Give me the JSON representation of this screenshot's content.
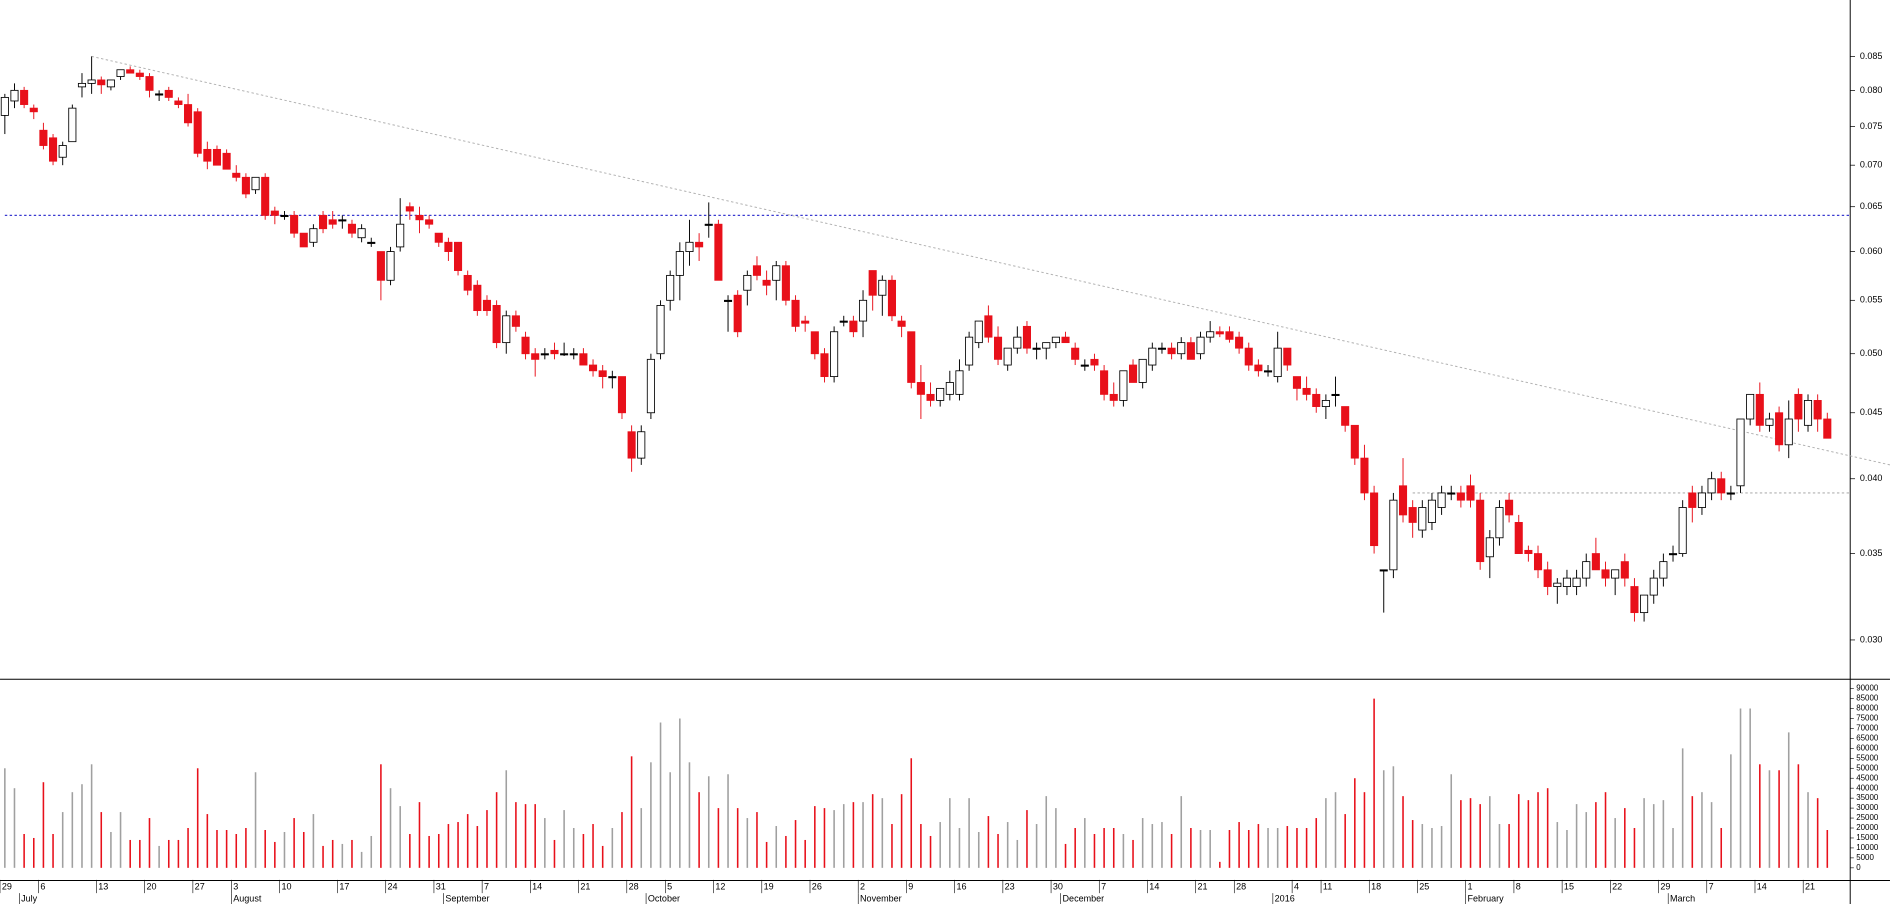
{
  "chart_data": {
    "type": "candlestick",
    "log_scale": true,
    "categories": [
      "29",
      null,
      null,
      null,
      "6",
      null,
      null,
      null,
      null,
      null,
      "13",
      null,
      null,
      null,
      null,
      "20",
      null,
      null,
      null,
      null,
      "27",
      null,
      null,
      null,
      "3",
      null,
      null,
      null,
      null,
      "10",
      null,
      null,
      null,
      null,
      null,
      "17",
      null,
      null,
      null,
      null,
      "24",
      null,
      null,
      null,
      null,
      "31",
      null,
      null,
      null,
      null,
      "7",
      null,
      null,
      null,
      null,
      "14",
      null,
      null,
      null,
      null,
      "21",
      null,
      null,
      null,
      null,
      "28",
      null,
      null,
      null,
      "5",
      null,
      null,
      null,
      null,
      "12",
      null,
      null,
      null,
      null,
      "19",
      null,
      null,
      null,
      null,
      "26",
      null,
      null,
      null,
      null,
      "2",
      null,
      null,
      null,
      null,
      "9",
      null,
      null,
      null,
      null,
      "16",
      null,
      null,
      null,
      null,
      "23",
      null,
      null,
      null,
      null,
      "30",
      null,
      null,
      null,
      null,
      "7",
      null,
      null,
      null,
      null,
      "14",
      null,
      null,
      null,
      null,
      "21",
      null,
      null,
      null,
      "28",
      null,
      null,
      null,
      null,
      null,
      "4",
      null,
      null,
      "11",
      null,
      null,
      null,
      null,
      "18",
      null,
      null,
      null,
      null,
      "25",
      null,
      null,
      null,
      null,
      "1",
      null,
      null,
      null,
      null,
      "8",
      null,
      null,
      null,
      null,
      "15",
      null,
      null,
      null,
      null,
      "22",
      null,
      null,
      null,
      null,
      "29",
      null,
      null,
      null,
      null,
      "7",
      null,
      null,
      null,
      null,
      "14",
      null,
      null,
      null,
      null,
      "21",
      null,
      null
    ],
    "month_labels": [
      null,
      null,
      "July",
      null,
      null,
      null,
      null,
      null,
      null,
      null,
      null,
      null,
      null,
      null,
      null,
      null,
      null,
      null,
      null,
      null,
      null,
      null,
      null,
      null,
      "August",
      null,
      null,
      null,
      null,
      null,
      null,
      null,
      null,
      null,
      null,
      null,
      null,
      null,
      null,
      null,
      null,
      null,
      null,
      null,
      null,
      null,
      "September",
      null,
      null,
      null,
      null,
      null,
      null,
      null,
      null,
      null,
      null,
      null,
      null,
      null,
      null,
      null,
      null,
      null,
      null,
      null,
      null,
      "October",
      null,
      null,
      null,
      null,
      null,
      null,
      null,
      null,
      null,
      null,
      null,
      null,
      null,
      null,
      null,
      null,
      null,
      null,
      null,
      null,
      null,
      "November",
      null,
      null,
      null,
      null,
      null,
      null,
      null,
      null,
      null,
      null,
      null,
      null,
      null,
      null,
      null,
      null,
      null,
      null,
      null,
      null,
      "December",
      null,
      null,
      null,
      null,
      null,
      null,
      null,
      null,
      null,
      null,
      null,
      null,
      null,
      null,
      null,
      null,
      null,
      null,
      null,
      null,
      null,
      "2016",
      null,
      null,
      null,
      null,
      null,
      null,
      null,
      null,
      null,
      null,
      null,
      null,
      null,
      null,
      null,
      null,
      null,
      null,
      null,
      "February",
      null,
      null,
      null,
      null,
      null,
      null,
      null,
      null,
      null,
      null,
      null,
      null,
      null,
      null,
      null,
      null,
      null,
      null,
      null,
      null,
      "March",
      null,
      null,
      null,
      null,
      null,
      null,
      null,
      null,
      null,
      null,
      null,
      null,
      null,
      null,
      null,
      null
    ],
    "open": [
      0.0765,
      0.0785,
      0.08,
      0.0775,
      0.0745,
      0.0735,
      0.071,
      0.073,
      0.0805,
      0.081,
      0.0815,
      0.0805,
      0.082,
      0.083,
      0.0825,
      0.082,
      0.0795,
      0.08,
      0.0785,
      0.078,
      0.077,
      0.072,
      0.072,
      0.0715,
      0.069,
      0.0685,
      0.067,
      0.0685,
      0.0645,
      0.064,
      0.064,
      0.062,
      0.061,
      0.064,
      0.0635,
      0.0635,
      0.063,
      0.0615,
      0.061,
      0.06,
      0.057,
      0.0605,
      0.065,
      0.064,
      0.0635,
      0.062,
      0.061,
      0.061,
      0.0575,
      0.0565,
      0.055,
      0.0545,
      0.051,
      0.0535,
      0.0515,
      0.05,
      0.05,
      0.0503,
      0.05,
      0.05,
      0.05,
      0.049,
      0.0485,
      0.048,
      0.048,
      0.0435,
      0.0415,
      0.045,
      0.05,
      0.055,
      0.0575,
      0.06,
      0.061,
      0.063,
      0.063,
      0.055,
      0.0555,
      0.056,
      0.0585,
      0.057,
      0.057,
      0.0585,
      0.055,
      0.053,
      0.052,
      0.05,
      0.048,
      0.053,
      0.053,
      0.053,
      0.058,
      0.0555,
      0.057,
      0.053,
      0.052,
      0.0475,
      0.0465,
      0.046,
      0.0465,
      0.0465,
      0.049,
      0.051,
      0.0535,
      0.0515,
      0.049,
      0.0505,
      0.0525,
      0.0505,
      0.0505,
      0.051,
      0.0515,
      0.0505,
      0.049,
      0.0495,
      0.0485,
      0.0465,
      0.046,
      0.049,
      0.0475,
      0.049,
      0.0505,
      0.0505,
      0.05,
      0.051,
      0.05,
      0.0515,
      0.052,
      0.052,
      0.0515,
      0.0505,
      0.049,
      0.0485,
      0.048,
      0.0505,
      0.048,
      0.047,
      0.0465,
      0.0455,
      0.0465,
      0.0455,
      0.044,
      0.0415,
      0.039,
      0.034,
      0.034,
      0.0395,
      0.038,
      0.0365,
      0.037,
      0.038,
      0.039,
      0.039,
      0.0395,
      0.0385,
      0.0348,
      0.036,
      0.0385,
      0.037,
      0.0352,
      0.035,
      0.034,
      0.033,
      0.033,
      0.033,
      0.0335,
      0.035,
      0.034,
      0.0335,
      0.0345,
      0.033,
      0.0315,
      0.0325,
      0.0335,
      0.035,
      0.035,
      0.039,
      0.038,
      0.039,
      0.04,
      0.039,
      0.0395,
      0.0445,
      0.0465,
      0.044,
      0.045,
      0.0425,
      0.0465,
      0.044,
      0.046,
      0.0445
    ],
    "high": [
      0.0795,
      0.081,
      0.0805,
      0.078,
      0.0755,
      0.074,
      0.073,
      0.078,
      0.0825,
      0.085,
      0.082,
      0.0815,
      0.083,
      0.0835,
      0.083,
      0.0825,
      0.08,
      0.0805,
      0.079,
      0.0795,
      0.0775,
      0.073,
      0.0725,
      0.072,
      0.07,
      0.069,
      0.0685,
      0.069,
      0.065,
      0.0645,
      0.0645,
      0.062,
      0.063,
      0.0645,
      0.0645,
      0.064,
      0.0635,
      0.063,
      0.0615,
      0.06,
      0.0605,
      0.066,
      0.0655,
      0.065,
      0.064,
      0.062,
      0.0615,
      0.061,
      0.058,
      0.057,
      0.0555,
      0.055,
      0.054,
      0.054,
      0.052,
      0.0505,
      0.0505,
      0.051,
      0.051,
      0.0505,
      0.0505,
      0.0495,
      0.049,
      0.0485,
      0.048,
      0.044,
      0.044,
      0.05,
      0.055,
      0.058,
      0.061,
      0.0635,
      0.062,
      0.0655,
      0.0635,
      0.0555,
      0.056,
      0.058,
      0.0595,
      0.058,
      0.059,
      0.059,
      0.0555,
      0.0535,
      0.052,
      0.0505,
      0.0525,
      0.0535,
      0.0535,
      0.056,
      0.058,
      0.0575,
      0.0575,
      0.0535,
      0.052,
      0.049,
      0.0475,
      0.047,
      0.0485,
      0.0495,
      0.052,
      0.053,
      0.0545,
      0.0525,
      0.0505,
      0.0525,
      0.053,
      0.051,
      0.051,
      0.0515,
      0.052,
      0.051,
      0.0495,
      0.05,
      0.049,
      0.0475,
      0.0485,
      0.0495,
      0.0495,
      0.051,
      0.051,
      0.051,
      0.0515,
      0.0515,
      0.052,
      0.053,
      0.0525,
      0.0525,
      0.052,
      0.051,
      0.0495,
      0.049,
      0.052,
      0.0505,
      0.048,
      0.048,
      0.047,
      0.0465,
      0.048,
      0.0455,
      0.044,
      0.0425,
      0.0395,
      0.034,
      0.039,
      0.0415,
      0.0385,
      0.0385,
      0.039,
      0.0395,
      0.0395,
      0.0395,
      0.0403,
      0.039,
      0.0365,
      0.0385,
      0.039,
      0.0375,
      0.0355,
      0.0355,
      0.0345,
      0.0335,
      0.034,
      0.034,
      0.035,
      0.036,
      0.0345,
      0.034,
      0.035,
      0.0335,
      0.0325,
      0.034,
      0.035,
      0.0355,
      0.0385,
      0.0395,
      0.0395,
      0.0405,
      0.0405,
      0.0395,
      0.0445,
      0.0465,
      0.0475,
      0.045,
      0.0455,
      0.046,
      0.047,
      0.0465,
      0.0465,
      0.045
    ],
    "low": [
      0.074,
      0.0775,
      0.0775,
      0.076,
      0.072,
      0.07,
      0.07,
      0.073,
      0.079,
      0.0795,
      0.0795,
      0.08,
      0.0815,
      0.0825,
      0.0815,
      0.079,
      0.0785,
      0.0785,
      0.0775,
      0.075,
      0.071,
      0.0695,
      0.07,
      0.0695,
      0.068,
      0.066,
      0.0665,
      0.0635,
      0.063,
      0.0635,
      0.0615,
      0.0605,
      0.0605,
      0.062,
      0.0625,
      0.0625,
      0.0615,
      0.061,
      0.0605,
      0.055,
      0.0565,
      0.06,
      0.0635,
      0.062,
      0.0625,
      0.0605,
      0.059,
      0.0575,
      0.0555,
      0.0535,
      0.0535,
      0.0505,
      0.05,
      0.052,
      0.0495,
      0.048,
      0.0495,
      0.0495,
      0.0498,
      0.0495,
      0.049,
      0.048,
      0.047,
      0.047,
      0.0445,
      0.0405,
      0.041,
      0.0445,
      0.0495,
      0.054,
      0.055,
      0.0585,
      0.059,
      0.0615,
      0.057,
      0.052,
      0.0515,
      0.0545,
      0.057,
      0.0555,
      0.055,
      0.0545,
      0.052,
      0.052,
      0.0495,
      0.0475,
      0.0475,
      0.0525,
      0.0515,
      0.0515,
      0.054,
      0.0535,
      0.053,
      0.0515,
      0.047,
      0.0445,
      0.0455,
      0.0455,
      0.046,
      0.046,
      0.0485,
      0.0505,
      0.051,
      0.049,
      0.0485,
      0.05,
      0.05,
      0.0495,
      0.0495,
      0.0505,
      0.051,
      0.049,
      0.0485,
      0.0485,
      0.046,
      0.0455,
      0.0455,
      0.0475,
      0.047,
      0.0485,
      0.05,
      0.0495,
      0.0495,
      0.0495,
      0.0495,
      0.051,
      0.0515,
      0.051,
      0.05,
      0.0485,
      0.048,
      0.048,
      0.0475,
      0.0485,
      0.046,
      0.046,
      0.045,
      0.0445,
      0.0455,
      0.0435,
      0.041,
      0.0385,
      0.035,
      0.0315,
      0.0335,
      0.037,
      0.036,
      0.036,
      0.0365,
      0.0375,
      0.0385,
      0.038,
      0.038,
      0.034,
      0.0335,
      0.0355,
      0.037,
      0.035,
      0.0345,
      0.0335,
      0.0325,
      0.032,
      0.0325,
      0.0325,
      0.033,
      0.034,
      0.033,
      0.0325,
      0.033,
      0.031,
      0.031,
      0.032,
      0.033,
      0.0345,
      0.0348,
      0.037,
      0.0375,
      0.0385,
      0.0385,
      0.0385,
      0.039,
      0.044,
      0.0435,
      0.0435,
      0.042,
      0.0415,
      0.0435,
      0.0435,
      0.0435,
      0.043
    ],
    "close": [
      0.079,
      0.08,
      0.078,
      0.077,
      0.0725,
      0.0705,
      0.0725,
      0.0775,
      0.081,
      0.0815,
      0.0808,
      0.0815,
      0.083,
      0.0825,
      0.082,
      0.08,
      0.0795,
      0.079,
      0.078,
      0.0755,
      0.0715,
      0.0705,
      0.07,
      0.0695,
      0.0685,
      0.0665,
      0.0685,
      0.064,
      0.064,
      0.064,
      0.062,
      0.0605,
      0.0625,
      0.0625,
      0.063,
      0.0635,
      0.062,
      0.0625,
      0.061,
      0.057,
      0.06,
      0.063,
      0.0645,
      0.0635,
      0.063,
      0.061,
      0.06,
      0.058,
      0.056,
      0.054,
      0.054,
      0.051,
      0.0535,
      0.0525,
      0.05,
      0.0495,
      0.05,
      0.05,
      0.05,
      0.05,
      0.049,
      0.0485,
      0.048,
      0.048,
      0.045,
      0.0415,
      0.0435,
      0.0495,
      0.0545,
      0.0575,
      0.06,
      0.061,
      0.0605,
      0.063,
      0.057,
      0.055,
      0.052,
      0.0575,
      0.0575,
      0.0565,
      0.0585,
      0.055,
      0.0525,
      0.0528,
      0.05,
      0.048,
      0.052,
      0.053,
      0.052,
      0.055,
      0.0555,
      0.057,
      0.0535,
      0.0525,
      0.0475,
      0.0465,
      0.046,
      0.047,
      0.0475,
      0.0485,
      0.0515,
      0.053,
      0.0515,
      0.0495,
      0.0505,
      0.0515,
      0.0505,
      0.0505,
      0.051,
      0.0515,
      0.051,
      0.0495,
      0.049,
      0.049,
      0.0465,
      0.046,
      0.0485,
      0.0475,
      0.0495,
      0.0505,
      0.0505,
      0.05,
      0.051,
      0.0495,
      0.0515,
      0.052,
      0.0518,
      0.0513,
      0.0505,
      0.049,
      0.0485,
      0.0485,
      0.0505,
      0.049,
      0.047,
      0.0465,
      0.0455,
      0.046,
      0.0465,
      0.044,
      0.0415,
      0.039,
      0.0355,
      0.034,
      0.0385,
      0.0375,
      0.037,
      0.038,
      0.0385,
      0.039,
      0.039,
      0.0385,
      0.0385,
      0.0345,
      0.036,
      0.038,
      0.0375,
      0.035,
      0.035,
      0.034,
      0.033,
      0.0332,
      0.0335,
      0.0335,
      0.0345,
      0.034,
      0.0335,
      0.034,
      0.0335,
      0.0315,
      0.0325,
      0.0335,
      0.0345,
      0.035,
      0.038,
      0.038,
      0.039,
      0.04,
      0.039,
      0.039,
      0.0445,
      0.0465,
      0.044,
      0.0445,
      0.0425,
      0.0445,
      0.0445,
      0.046,
      0.0445,
      0.043
    ],
    "volume": [
      50000,
      40000,
      17000,
      15000,
      43000,
      17000,
      28000,
      38000,
      42000,
      52000,
      28000,
      18000,
      28000,
      14000,
      14000,
      25000,
      11000,
      14000,
      14000,
      20000,
      50000,
      27000,
      19000,
      19000,
      17000,
      20000,
      48000,
      19000,
      13000,
      18000,
      25000,
      18000,
      27000,
      11000,
      14000,
      12000,
      14000,
      8000,
      16000,
      52000,
      40000,
      31000,
      17000,
      33000,
      16000,
      17000,
      22000,
      23000,
      27000,
      21000,
      29000,
      38000,
      49000,
      33000,
      32000,
      32000,
      25000,
      14000,
      29000,
      20000,
      17000,
      22000,
      11000,
      20000,
      28000,
      56000,
      30000,
      53000,
      73000,
      48000,
      75000,
      53000,
      38000,
      46000,
      30000,
      47000,
      30000,
      25000,
      28000,
      13000,
      21000,
      16000,
      24000,
      14000,
      31000,
      30000,
      29000,
      32000,
      33000,
      33000,
      37000,
      35000,
      22000,
      37000,
      55000,
      22000,
      16000,
      23000,
      35000,
      20000,
      35000,
      18000,
      26000,
      17000,
      23000,
      14000,
      29000,
      22000,
      36000,
      30000,
      12000,
      20000,
      25000,
      17000,
      20000,
      20000,
      17000,
      14000,
      25000,
      22000,
      23000,
      17000,
      36000,
      20000,
      19000,
      19000,
      3000,
      19000,
      23000,
      19000,
      22000,
      20000,
      20000,
      21000,
      20000,
      20000,
      25000,
      35000,
      38000,
      27000,
      45000,
      38000,
      85000,
      49000,
      51000,
      36000,
      24000,
      22000,
      20000,
      21000,
      47000,
      34000,
      35000,
      32000,
      36000,
      22000,
      22000,
      37000,
      34000,
      38000,
      40000,
      23000,
      19000,
      32000,
      28000,
      33000,
      38000,
      25000,
      30000,
      20000,
      35000,
      32000,
      34000,
      20000,
      60000,
      36000,
      38000,
      33000,
      20000,
      57000,
      80000,
      80000,
      52000,
      49000,
      49000,
      68000,
      52000,
      38000,
      35000,
      19000
    ],
    "ylim": [
      0.028,
      0.094
    ],
    "yticks": [
      {
        "value": 0.03,
        "label": "0.030"
      },
      0.035,
      {
        "value": 0.04,
        "label": "0.040"
      },
      0.045,
      {
        "value": 0.05,
        "label": "0.050"
      },
      0.055,
      {
        "value": 0.06,
        "label": "0.060"
      },
      0.065,
      {
        "value": 0.07,
        "label": "0.070"
      },
      0.075,
      {
        "value": 0.08,
        "label": "0.080"
      },
      0.085
    ],
    "volume_ylim": [
      0,
      92000
    ],
    "volume_yticks": [
      0,
      5000,
      10000,
      15000,
      20000,
      25000,
      30000,
      35000,
      40000,
      45000,
      50000,
      55000,
      60000,
      65000,
      70000,
      75000,
      80000,
      85000,
      90000
    ],
    "colors": {
      "up": "#ffffff",
      "down": "#e8101a",
      "doji": "#000000",
      "volume_up": "#a0a0a0",
      "volume_down": "#e8101a"
    },
    "reference_lines": [
      {
        "value": 0.064,
        "color": "#3a3ad0",
        "from": 0
      },
      {
        "value": 0.039,
        "color": "#b0b0b0",
        "from": 146
      }
    ],
    "trendline": {
      "x": [
        9,
        195.5
      ],
      "y": [
        0.085,
        0.041
      ],
      "color": "#b0b0b0"
    }
  }
}
